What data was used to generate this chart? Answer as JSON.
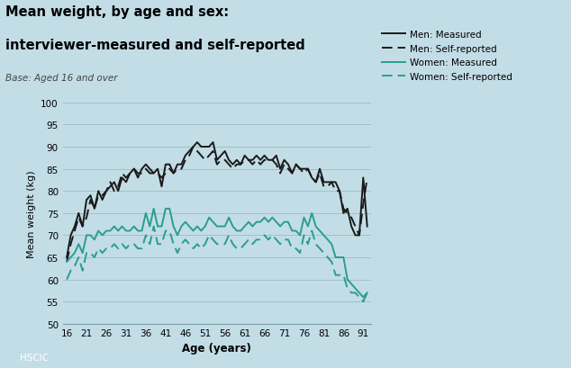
{
  "title_line1": "Mean weight, by age and sex:",
  "title_line2": "interviewer-measured and self-reported",
  "subtitle": "Base: Aged 16 and over",
  "xlabel": "Age (years)",
  "ylabel": "Mean weight (kg)",
  "footer": "HSCIC",
  "background_color": "#c3dde6",
  "ylim": [
    50,
    100
  ],
  "yticks": [
    50,
    55,
    60,
    65,
    70,
    75,
    80,
    85,
    90,
    95,
    100
  ],
  "xtick_labels": [
    "16",
    "21",
    "26",
    "31",
    "36",
    "41",
    "46",
    "51",
    "56",
    "61",
    "66",
    "71",
    "76",
    "81",
    "86",
    "91"
  ],
  "ages": [
    16,
    17,
    18,
    19,
    20,
    21,
    22,
    23,
    24,
    25,
    26,
    27,
    28,
    29,
    30,
    31,
    32,
    33,
    34,
    35,
    36,
    37,
    38,
    39,
    40,
    41,
    42,
    43,
    44,
    45,
    46,
    47,
    48,
    49,
    50,
    51,
    52,
    53,
    54,
    55,
    56,
    57,
    58,
    59,
    60,
    61,
    62,
    63,
    64,
    65,
    66,
    67,
    68,
    69,
    70,
    71,
    72,
    73,
    74,
    75,
    76,
    77,
    78,
    79,
    80,
    81,
    82,
    83,
    84,
    85,
    86,
    87,
    88,
    89,
    90,
    91,
    92
  ],
  "men_measured": [
    65,
    70,
    72,
    75,
    72,
    78,
    79,
    76,
    80,
    78,
    80,
    81,
    82,
    80,
    83,
    82,
    84,
    85,
    83,
    85,
    86,
    85,
    84,
    85,
    81,
    86,
    86,
    84,
    86,
    86,
    88,
    89,
    90,
    91,
    90,
    90,
    90,
    91,
    87,
    88,
    89,
    87,
    86,
    87,
    86,
    88,
    87,
    87,
    88,
    87,
    88,
    87,
    87,
    88,
    85,
    87,
    86,
    84,
    86,
    85,
    85,
    85,
    83,
    82,
    85,
    82,
    82,
    82,
    82,
    80,
    75,
    76,
    72,
    70,
    70,
    83,
    72
  ],
  "men_selfreported": [
    64,
    68,
    71,
    74,
    72,
    74,
    78,
    76,
    79,
    79,
    80,
    82,
    80,
    81,
    84,
    83,
    84,
    85,
    84,
    84,
    85,
    84,
    84,
    84,
    83,
    84,
    85,
    84,
    85,
    85,
    87,
    88,
    90,
    89,
    88,
    87,
    88,
    89,
    86,
    87,
    87,
    86,
    85,
    86,
    86,
    87,
    87,
    86,
    87,
    86,
    87,
    87,
    87,
    86,
    84,
    86,
    85,
    84,
    86,
    85,
    84,
    85,
    83,
    82,
    84,
    81,
    81,
    82,
    80,
    80,
    76,
    75,
    74,
    72,
    70,
    77,
    83
  ],
  "women_measured": [
    64,
    65,
    66,
    68,
    66,
    70,
    70,
    69,
    71,
    70,
    71,
    71,
    72,
    71,
    72,
    71,
    71,
    72,
    71,
    71,
    75,
    72,
    76,
    72,
    72,
    76,
    76,
    72,
    70,
    72,
    73,
    72,
    71,
    72,
    71,
    72,
    74,
    73,
    72,
    72,
    72,
    74,
    72,
    71,
    71,
    72,
    73,
    72,
    73,
    73,
    74,
    73,
    74,
    73,
    72,
    73,
    73,
    71,
    71,
    70,
    74,
    72,
    75,
    72,
    71,
    70,
    69,
    68,
    65,
    65,
    65,
    60,
    59,
    58,
    57,
    56,
    57
  ],
  "women_selfreported": [
    60,
    62,
    63,
    65,
    62,
    66,
    66,
    65,
    67,
    66,
    67,
    67,
    68,
    67,
    68,
    67,
    68,
    68,
    67,
    67,
    70,
    68,
    72,
    68,
    68,
    71,
    71,
    68,
    66,
    68,
    69,
    68,
    67,
    68,
    67,
    68,
    70,
    69,
    68,
    68,
    68,
    70,
    68,
    67,
    67,
    68,
    69,
    68,
    69,
    69,
    70,
    69,
    70,
    69,
    68,
    69,
    69,
    67,
    67,
    66,
    70,
    68,
    71,
    68,
    67,
    66,
    65,
    64,
    61,
    61,
    61,
    58,
    57,
    57,
    56,
    55,
    57
  ],
  "men_measured_color": "#1a1a1a",
  "men_selfreported_color": "#1a1a1a",
  "women_measured_color": "#2a9d8f",
  "women_selfreported_color": "#2a9d8f",
  "legend_labels": [
    "Men: Measured",
    "Men: Self-reported",
    "Women: Measured",
    "Women: Self-reported"
  ]
}
